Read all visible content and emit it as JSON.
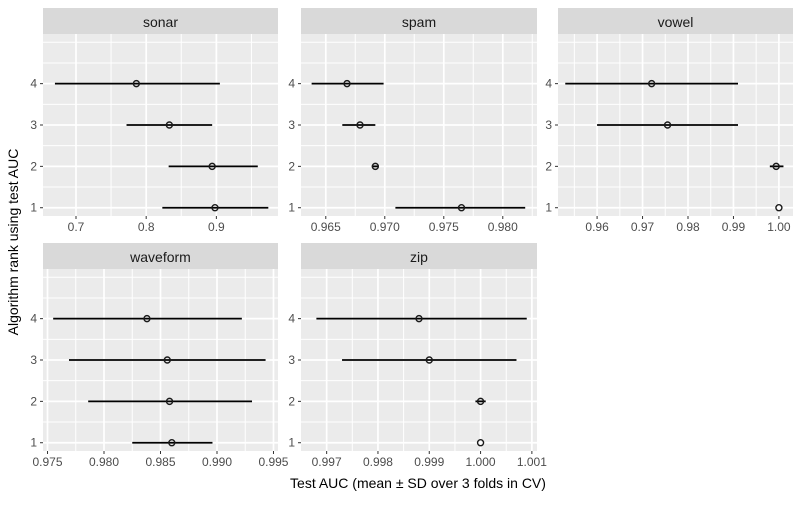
{
  "figure": {
    "x_axis_title": "Test AUC (mean ± SD over 3 folds in CV)",
    "y_axis_title": "Algorithm rank using test AUC",
    "colors": {
      "panel_bg": "#ebebeb",
      "strip_bg": "#d9d9d9",
      "grid": "#ffffff",
      "tick_mark": "#333333",
      "tick_text": "#4d4d4d",
      "bar": "#000000",
      "point": "#1a1a1a"
    }
  },
  "chart_data": {
    "type": "scatter",
    "subtype": "horizontal-errorbar-dotplot",
    "title": "",
    "xlabel": "Test AUC (mean ± SD over 3 folds in CV)",
    "ylabel": "Algorithm rank using test AUC",
    "grid": "on",
    "legend": "none",
    "y_ticks": [
      4,
      3,
      2,
      1
    ],
    "y_domain": [
      0.8,
      5.2
    ],
    "y_minor": [
      1.5,
      2.5,
      3.5,
      4.5,
      5.0
    ],
    "panels": [
      {
        "title": "sonar",
        "x_domain": [
          0.653,
          0.9878
        ],
        "x_ticks": [
          0.7,
          0.8,
          0.9
        ],
        "x_tick_labels": [
          "0.7",
          "0.8",
          "0.9"
        ],
        "x_minor": [
          0.75,
          0.85,
          0.95
        ],
        "points": [
          {
            "rank": 4,
            "mean": 0.786,
            "low": 0.67,
            "high": 0.905
          },
          {
            "rank": 3,
            "mean": 0.833,
            "low": 0.772,
            "high": 0.894
          },
          {
            "rank": 2,
            "mean": 0.894,
            "low": 0.832,
            "high": 0.959
          },
          {
            "rank": 1,
            "mean": 0.898,
            "low": 0.823,
            "high": 0.974
          }
        ]
      },
      {
        "title": "spam",
        "x_domain": [
          0.9629,
          0.9829
        ],
        "x_ticks": [
          0.965,
          0.97,
          0.975,
          0.98
        ],
        "x_tick_labels": [
          "0.965",
          "0.970",
          "0.975",
          "0.980"
        ],
        "x_minor": [
          0.9675,
          0.9725,
          0.9775,
          0.9825
        ],
        "points": [
          {
            "rank": 4,
            "mean": 0.9668,
            "low": 0.9638,
            "high": 0.9699
          },
          {
            "rank": 3,
            "mean": 0.9679,
            "low": 0.9664,
            "high": 0.9692
          },
          {
            "rank": 2,
            "mean": 0.9692,
            "low": 0.9689,
            "high": 0.9695
          },
          {
            "rank": 1,
            "mean": 0.9765,
            "low": 0.9709,
            "high": 0.9819
          }
        ]
      },
      {
        "title": "vowel",
        "x_domain": [
          0.9514,
          1.0031
        ],
        "x_ticks": [
          0.96,
          0.97,
          0.98,
          0.99,
          1.0
        ],
        "x_tick_labels": [
          "0.96",
          "0.97",
          "0.98",
          "0.99",
          "1.00"
        ],
        "x_minor": [
          0.955,
          0.965,
          0.975,
          0.985,
          0.995
        ],
        "points": [
          {
            "rank": 4,
            "mean": 0.972,
            "low": 0.953,
            "high": 0.991
          },
          {
            "rank": 3,
            "mean": 0.9755,
            "low": 0.96,
            "high": 0.991
          },
          {
            "rank": 2,
            "mean": 0.9994,
            "low": 0.998,
            "high": 1.001
          },
          {
            "rank": 1,
            "mean": 1.0,
            "low": 1.0,
            "high": 1.0
          }
        ]
      },
      {
        "title": "waveform",
        "x_domain": [
          0.9746,
          0.9954
        ],
        "x_ticks": [
          0.975,
          0.98,
          0.985,
          0.99,
          0.995
        ],
        "x_tick_labels": [
          "0.975",
          "0.980",
          "0.985",
          "0.990",
          "0.995"
        ],
        "x_minor": [
          0.9775,
          0.9825,
          0.9875,
          0.9925
        ],
        "points": [
          {
            "rank": 4,
            "mean": 0.9838,
            "low": 0.9755,
            "high": 0.9922
          },
          {
            "rank": 3,
            "mean": 0.9856,
            "low": 0.9769,
            "high": 0.9943
          },
          {
            "rank": 2,
            "mean": 0.9858,
            "low": 0.9786,
            "high": 0.9931
          },
          {
            "rank": 1,
            "mean": 0.986,
            "low": 0.9825,
            "high": 0.9896
          }
        ]
      },
      {
        "title": "zip",
        "x_domain": [
          0.9965,
          1.0011
        ],
        "x_ticks": [
          0.997,
          0.998,
          0.999,
          1.0,
          1.001
        ],
        "x_tick_labels": [
          "0.997",
          "0.998",
          "0.999",
          "1.000",
          "1.001"
        ],
        "x_minor": [
          0.9975,
          0.9985,
          0.9995,
          1.0005
        ],
        "points": [
          {
            "rank": 4,
            "mean": 0.9988,
            "low": 0.9968,
            "high": 1.0009
          },
          {
            "rank": 3,
            "mean": 0.999,
            "low": 0.9973,
            "high": 1.0007
          },
          {
            "rank": 2,
            "mean": 1.0,
            "low": 0.9999,
            "high": 1.0001
          },
          {
            "rank": 1,
            "mean": 1.0,
            "low": 1.0,
            "high": 1.0
          }
        ]
      }
    ]
  }
}
